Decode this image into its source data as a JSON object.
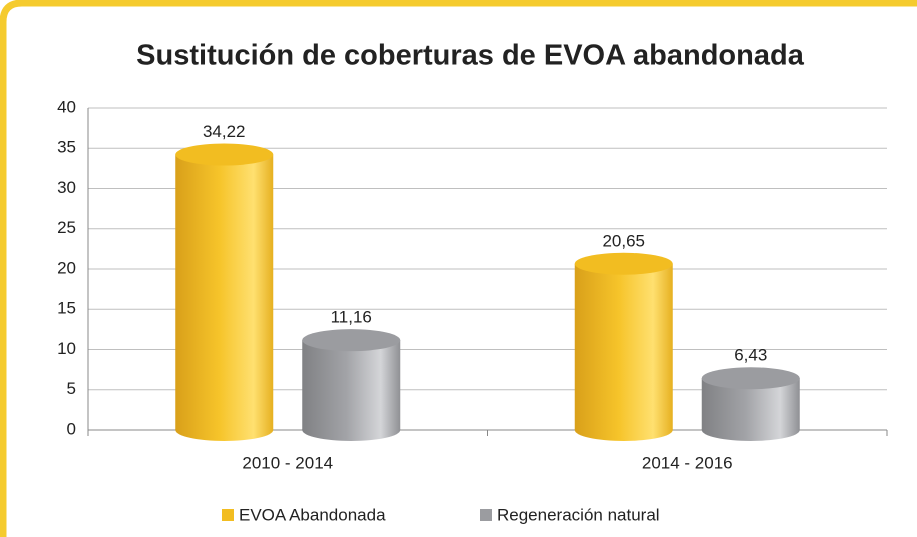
{
  "chart_data": {
    "type": "cylinder-bar",
    "title": "Sustitución de coberturas de EVOA abandonada",
    "categories": [
      "2010 - 2014",
      "2014 - 2016"
    ],
    "series": [
      {
        "name": "EVOA Abandonada",
        "color": "#f2bd21",
        "values": [
          34.22,
          20.65
        ],
        "value_labels": [
          "34,22",
          "20,65"
        ]
      },
      {
        "name": "Regeneración natural",
        "color": "#9b9ca0",
        "values": [
          11.16,
          6.43
        ],
        "value_labels": [
          "11,16",
          "6,43"
        ]
      }
    ],
    "ylim": [
      0,
      40
    ],
    "yticks": [
      0,
      5,
      10,
      15,
      20,
      25,
      30,
      35,
      40
    ],
    "grid": true,
    "legend": "bottom"
  }
}
